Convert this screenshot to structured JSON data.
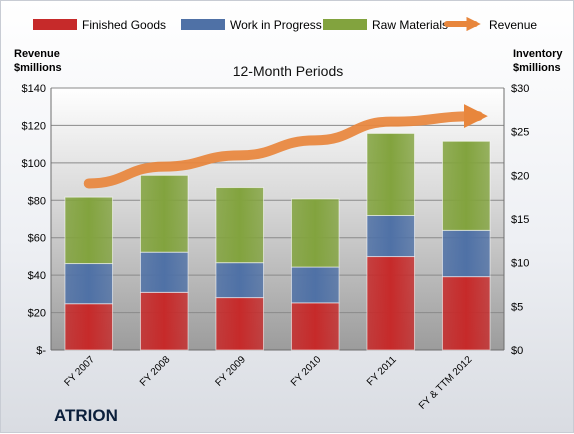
{
  "header": {
    "left_axis_title": [
      "Revenue",
      "$millions"
    ],
    "right_axis_title": [
      "Inventory",
      "$millions"
    ],
    "subtitle": "12-Month Periods"
  },
  "footer": {
    "company": "ATRION"
  },
  "colors": {
    "finished_goods": "#c62a2a",
    "work_in_progress": "#4f71a6",
    "raw_materials": "#82a33e",
    "revenue": "#e8863c",
    "plot_bg": "#b5b5b5"
  },
  "chart_data": {
    "type": "bar",
    "stacked": true,
    "title": "12-Month Periods",
    "categories": [
      "FY 2007",
      "FY 2008",
      "FY 2009",
      "FY 2010",
      "FY 2011",
      "FY & TTM 2012"
    ],
    "series": [
      {
        "name": "Finished Goods",
        "axis": "right",
        "values": [
          5.3,
          6.6,
          6.0,
          5.4,
          10.7,
          8.4
        ]
      },
      {
        "name": "Work in Progress",
        "axis": "right",
        "values": [
          4.6,
          4.6,
          4.0,
          4.1,
          4.7,
          5.3
        ]
      },
      {
        "name": "Raw Materials",
        "axis": "right",
        "values": [
          7.6,
          8.8,
          8.6,
          7.8,
          9.4,
          10.2
        ]
      },
      {
        "name": "Revenue",
        "type": "line",
        "axis": "left",
        "values": [
          89,
          98,
          104,
          112,
          122,
          125
        ]
      }
    ],
    "left_axis": {
      "ylim": [
        0,
        140
      ],
      "ticks": [
        "$-",
        "$20",
        "$40",
        "$60",
        "$80",
        "$100",
        "$120",
        "$140"
      ]
    },
    "right_axis": {
      "ylim": [
        0,
        30
      ],
      "ticks": [
        "$0",
        "$5",
        "$10",
        "$15",
        "$20",
        "$25",
        "$30"
      ]
    },
    "grid": true,
    "legend": "top"
  }
}
